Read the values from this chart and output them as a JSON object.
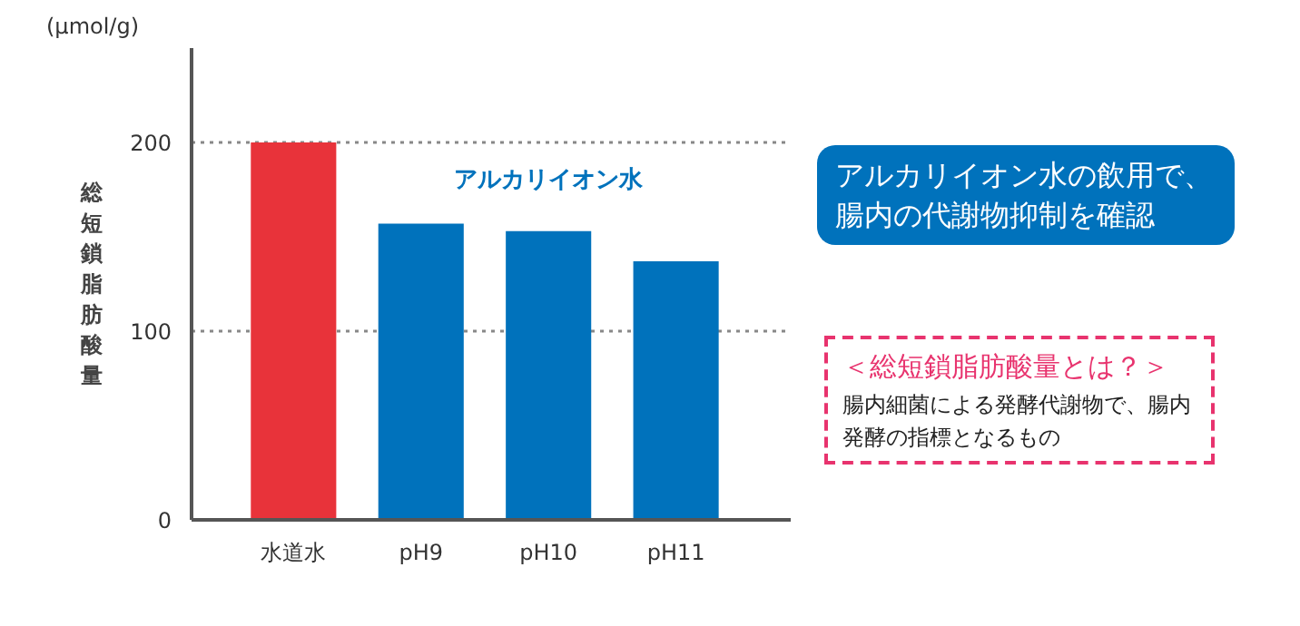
{
  "chart_data": {
    "type": "bar",
    "ylabel": "総短鎖脂肪酸量",
    "categories": [
      "水道水",
      "pH9",
      "pH10",
      "pH11"
    ],
    "values": [
      200,
      157,
      153,
      137
    ],
    "colors": [
      "#e8333a",
      "#0072bc",
      "#0072bc",
      "#0072bc"
    ],
    "ylim": [
      0,
      250
    ],
    "yticks": [
      0,
      100,
      200
    ],
    "grid": "y",
    "annotations": [
      "(μmol/g)",
      "アルカリイオン水",
      "アルカリイオン水の飲用で、腸内の代謝物抑制を確認",
      "＜総短鎖脂肪酸量とは？＞",
      "腸内細菌による発酵代謝物で、腸内発酵の指標となるもの"
    ]
  }
}
